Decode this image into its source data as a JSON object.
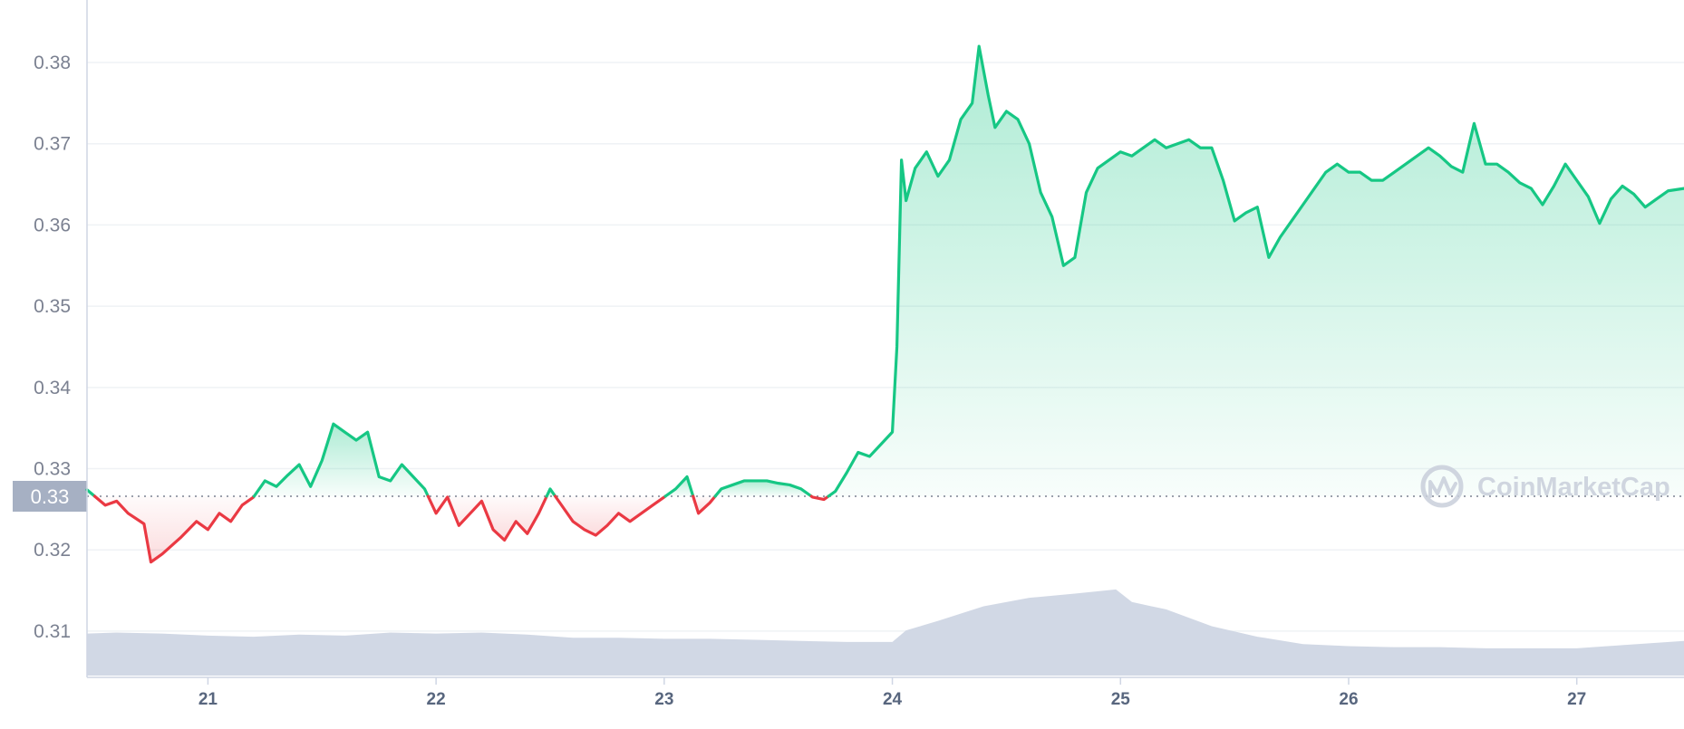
{
  "chart_data": {
    "type": "line",
    "y_ticks": [
      "0.38",
      "0.37",
      "0.36",
      "0.35",
      "0.34",
      "0.33",
      "0.32",
      "0.31"
    ],
    "y_tick_values": [
      0.38,
      0.37,
      0.36,
      0.35,
      0.34,
      0.33,
      0.32,
      0.31
    ],
    "x_ticks": [
      "21",
      "22",
      "23",
      "24",
      "25",
      "26",
      "27"
    ],
    "x_tick_values": [
      21,
      22,
      23,
      24,
      25,
      26,
      27
    ],
    "xlim": [
      20.47,
      27.47
    ],
    "ylim": [
      0.3043,
      0.3877
    ],
    "grid": true,
    "baseline_value": 0.3266,
    "baseline_label": "0.33",
    "price": {
      "x": [
        20.47,
        20.55,
        20.6,
        20.65,
        20.72,
        20.75,
        20.8,
        20.88,
        20.95,
        21.0,
        21.05,
        21.1,
        21.15,
        21.2,
        21.25,
        21.3,
        21.35,
        21.4,
        21.45,
        21.5,
        21.55,
        21.6,
        21.65,
        21.7,
        21.75,
        21.8,
        21.85,
        21.9,
        21.95,
        22.0,
        22.05,
        22.1,
        22.15,
        22.2,
        22.25,
        22.3,
        22.35,
        22.4,
        22.45,
        22.5,
        22.55,
        22.6,
        22.65,
        22.7,
        22.75,
        22.8,
        22.85,
        22.9,
        22.95,
        23.0,
        23.05,
        23.1,
        23.15,
        23.2,
        23.25,
        23.3,
        23.35,
        23.4,
        23.45,
        23.5,
        23.55,
        23.6,
        23.65,
        23.7,
        23.75,
        23.8,
        23.85,
        23.9,
        23.95,
        24.0,
        24.02,
        24.04,
        24.06,
        24.1,
        24.15,
        24.2,
        24.25,
        24.3,
        24.35,
        24.38,
        24.42,
        24.45,
        24.5,
        24.55,
        24.6,
        24.65,
        24.7,
        24.75,
        24.8,
        24.85,
        24.9,
        24.95,
        25.0,
        25.05,
        25.1,
        25.15,
        25.2,
        25.25,
        25.3,
        25.35,
        25.4,
        25.45,
        25.5,
        25.55,
        25.6,
        25.65,
        25.7,
        25.75,
        25.8,
        25.85,
        25.9,
        25.95,
        26.0,
        26.05,
        26.1,
        26.15,
        26.2,
        26.25,
        26.3,
        26.35,
        26.4,
        26.45,
        26.5,
        26.55,
        26.6,
        26.65,
        26.7,
        26.75,
        26.8,
        26.85,
        26.9,
        26.95,
        27.0,
        27.05,
        27.1,
        27.15,
        27.2,
        27.25,
        27.3,
        27.35,
        27.4,
        27.47
      ],
      "y": [
        0.3274,
        0.3255,
        0.326,
        0.3245,
        0.3232,
        0.3185,
        0.3195,
        0.3215,
        0.3235,
        0.3225,
        0.3245,
        0.3235,
        0.3255,
        0.3265,
        0.3285,
        0.3278,
        0.3292,
        0.3305,
        0.3278,
        0.331,
        0.3355,
        0.3345,
        0.3335,
        0.3345,
        0.329,
        0.3285,
        0.3305,
        0.329,
        0.3275,
        0.3245,
        0.3265,
        0.323,
        0.3245,
        0.326,
        0.3225,
        0.3212,
        0.3235,
        0.322,
        0.3245,
        0.3275,
        0.3255,
        0.3235,
        0.3225,
        0.3218,
        0.323,
        0.3245,
        0.3235,
        0.3245,
        0.3255,
        0.3265,
        0.3275,
        0.329,
        0.3245,
        0.3258,
        0.3275,
        0.328,
        0.3285,
        0.3285,
        0.3285,
        0.3282,
        0.328,
        0.3275,
        0.3265,
        0.3262,
        0.3272,
        0.3295,
        0.332,
        0.3315,
        0.333,
        0.3345,
        0.345,
        0.368,
        0.363,
        0.367,
        0.369,
        0.366,
        0.368,
        0.373,
        0.375,
        0.382,
        0.376,
        0.372,
        0.374,
        0.373,
        0.37,
        0.364,
        0.361,
        0.355,
        0.356,
        0.364,
        0.367,
        0.368,
        0.369,
        0.3685,
        0.3695,
        0.3705,
        0.3695,
        0.37,
        0.3705,
        0.3695,
        0.3695,
        0.3655,
        0.3605,
        0.3615,
        0.3622,
        0.356,
        0.3585,
        0.3605,
        0.3625,
        0.3645,
        0.3665,
        0.3675,
        0.3665,
        0.3665,
        0.3655,
        0.3655,
        0.3665,
        0.3675,
        0.3685,
        0.3695,
        0.3685,
        0.3672,
        0.3665,
        0.3725,
        0.3675,
        0.3675,
        0.3665,
        0.3652,
        0.3645,
        0.3625,
        0.3648,
        0.3675,
        0.3655,
        0.3635,
        0.3602,
        0.3632,
        0.3648,
        0.3638,
        0.3622,
        0.3632,
        0.3642,
        0.3645
      ]
    },
    "volume": {
      "x": [
        20.47,
        20.6,
        20.8,
        21.0,
        21.2,
        21.4,
        21.6,
        21.8,
        22.0,
        22.2,
        22.4,
        22.6,
        22.8,
        23.0,
        23.2,
        23.4,
        23.6,
        23.8,
        24.0,
        24.06,
        24.2,
        24.4,
        24.6,
        24.8,
        24.98,
        25.05,
        25.2,
        25.4,
        25.6,
        25.8,
        26.0,
        26.2,
        26.4,
        26.6,
        26.8,
        27.0,
        27.2,
        27.47
      ],
      "level": [
        0.4,
        0.41,
        0.4,
        0.38,
        0.37,
        0.39,
        0.38,
        0.41,
        0.4,
        0.41,
        0.39,
        0.36,
        0.36,
        0.35,
        0.35,
        0.34,
        0.33,
        0.32,
        0.32,
        0.43,
        0.52,
        0.66,
        0.74,
        0.78,
        0.82,
        0.7,
        0.63,
        0.47,
        0.37,
        0.3,
        0.28,
        0.27,
        0.27,
        0.26,
        0.26,
        0.26,
        0.29,
        0.33
      ]
    },
    "colors": {
      "up_line": "#16c784",
      "down_line": "#ea3943",
      "volume_fill": "#cfd6e4",
      "axis_line": "#cfd6e4",
      "badge_bg": "#a6b0c3",
      "badge_text": "#ffffff"
    },
    "watermark": "CoinMarketCap"
  }
}
